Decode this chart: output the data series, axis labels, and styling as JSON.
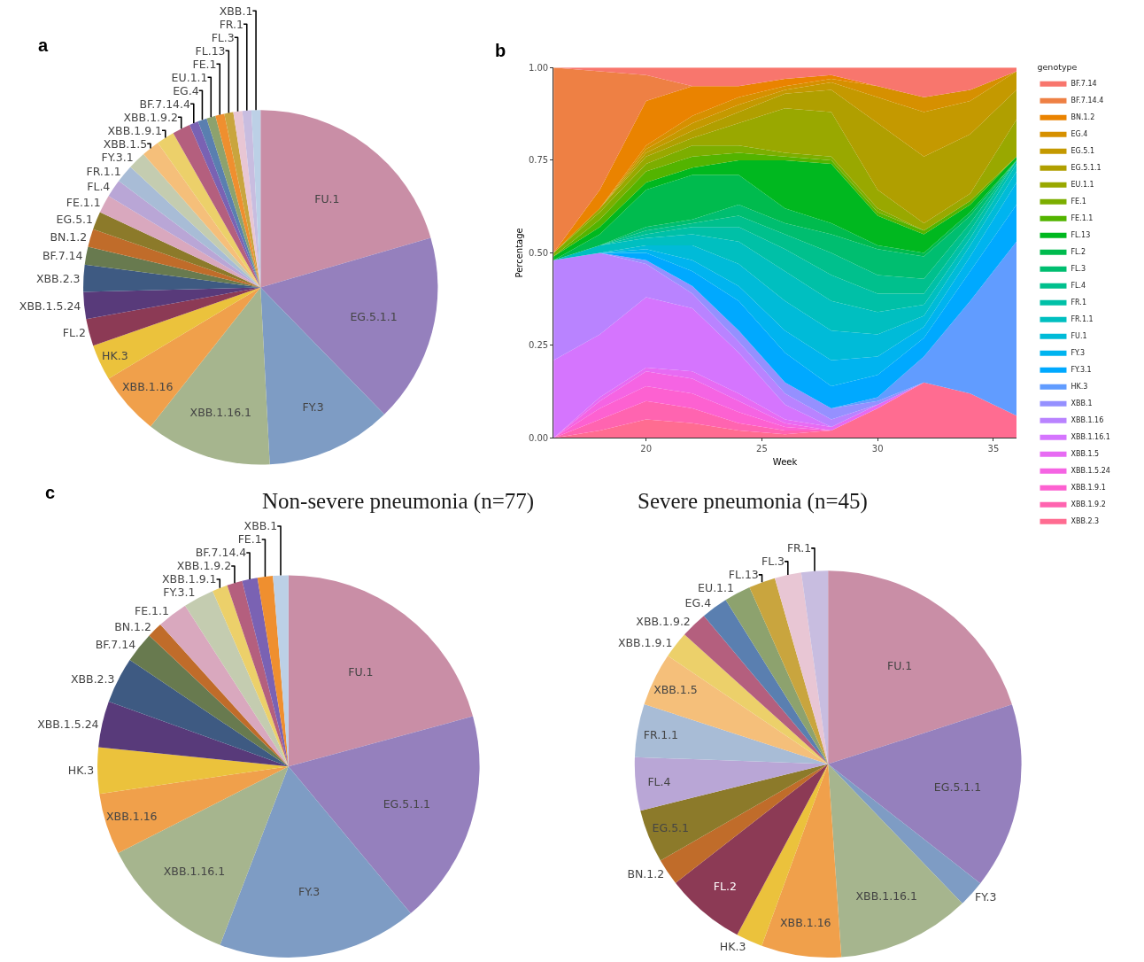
{
  "chart_data": [
    {
      "type": "pie",
      "annotations": [
        "a"
      ],
      "categories": [
        "FU.1",
        "EG.5.1.1",
        "FY.3",
        "XBB.1.16.1",
        "XBB.1.16",
        "HK.3",
        "FL.2",
        "XBB.1.5.24",
        "XBB.2.3",
        "BF.7.14",
        "BN.1.2",
        "EG.5.1",
        "FE.1.1",
        "FL.4",
        "FR.1.1",
        "FY.3.1",
        "XBB.1.5",
        "XBB.1.9.1",
        "XBB.1.9.2",
        "BF.7.14.4",
        "EG.4",
        "EU.1.1",
        "FE.1",
        "FL.13",
        "FL.3",
        "FR.1",
        "XBB.1"
      ],
      "values": [
        20.49,
        17.21,
        11.48,
        11.48,
        5.74,
        3.28,
        2.46,
        2.46,
        2.46,
        1.64,
        1.64,
        1.64,
        1.64,
        1.64,
        1.64,
        1.64,
        1.64,
        1.64,
        1.64,
        0.82,
        0.82,
        0.82,
        0.82,
        0.82,
        0.82,
        0.82,
        0.82
      ],
      "colors": [
        "#c98ea6",
        "#9580bd",
        "#7e9cc4",
        "#a6b58e",
        "#f0a04b",
        "#ebc23c",
        "#8c3a55",
        "#583a7a",
        "#3e5a82",
        "#687a4f",
        "#c06c2a",
        "#8c7a2a",
        "#d9a8be",
        "#b9a6d6",
        "#a8bcd6",
        "#c4ccb0",
        "#f5bf7a",
        "#ecd06a",
        "#b45f7e",
        "#7a62b3",
        "#5a7fb0",
        "#8da26e",
        "#ef8f2f",
        "#c9a53e",
        "#e8c6d4",
        "#c8bde0",
        "#bcd0e6"
      ]
    },
    {
      "type": "area",
      "stacked": true,
      "annotations": [
        "b"
      ],
      "xlabel": "Week",
      "ylabel": "Percentage",
      "legend": "right",
      "legend_title": "genotype",
      "x": [
        16,
        18,
        20,
        22,
        24,
        26,
        28,
        30,
        32,
        34,
        36
      ],
      "xlim": [
        16,
        36
      ],
      "xticks": [
        20,
        25,
        30,
        35
      ],
      "ylim": [
        0,
        1
      ],
      "yticks": [
        {
          "value": 0,
          "label": "0.00"
        },
        {
          "value": 0.25,
          "label": "0.25"
        },
        {
          "value": 0.5,
          "label": "0.50"
        },
        {
          "value": 0.75,
          "label": "0.75"
        },
        {
          "value": 1,
          "label": "1.00"
        }
      ],
      "series": [
        {
          "name": "XBB.2.3",
          "color": "#ff6c91",
          "values": [
            0,
            0.02,
            0.05,
            0.04,
            0.02,
            0.01,
            0.02,
            0.08,
            0.15,
            0.12,
            0.06
          ]
        },
        {
          "name": "XBB.1.9.2",
          "color": "#ff64b0",
          "values": [
            0,
            0.03,
            0.05,
            0.04,
            0.02,
            0.01,
            0,
            null,
            null,
            null,
            null
          ]
        },
        {
          "name": "XBB.1.9.1",
          "color": "#fd61d1",
          "values": [
            0,
            0.03,
            0.04,
            0.04,
            0.03,
            0.01,
            0,
            null,
            null,
            null,
            null
          ]
        },
        {
          "name": "XBB.1.5.24",
          "color": "#f564e3",
          "values": [
            0,
            0.02,
            0.04,
            0.04,
            0.03,
            0.01,
            0,
            null,
            null,
            null,
            null
          ]
        },
        {
          "name": "XBB.1.5",
          "color": "#e76bf3",
          "values": [
            0,
            0.01,
            0.01,
            0.02,
            0.02,
            0.01,
            0.01,
            0.01,
            0,
            null,
            null
          ]
        },
        {
          "name": "XBB.1.16.1",
          "color": "#d575fe",
          "values": [
            0.21,
            0.17,
            0.19,
            0.17,
            0.11,
            0.04,
            0,
            null,
            null,
            null,
            null
          ]
        },
        {
          "name": "XBB.1.16",
          "color": "#b983ff",
          "values": [
            0.27,
            0.22,
            0.09,
            0.04,
            0.03,
            0.03,
            0.02,
            0,
            null,
            null,
            null
          ]
        },
        {
          "name": "XBB.1",
          "color": "#9590ff",
          "values": [
            null,
            0,
            0.01,
            0.02,
            0.03,
            0.03,
            0.03,
            0.01,
            0,
            null,
            null
          ]
        },
        {
          "name": "HK.3",
          "color": "#619cff",
          "values": [
            null,
            null,
            null,
            null,
            null,
            null,
            0,
            0.01,
            0.07,
            0.25,
            0.47
          ]
        },
        {
          "name": "FY.3.1",
          "color": "#00a9ff",
          "values": [
            null,
            0,
            0.02,
            0.04,
            0.08,
            0.08,
            0.06,
            0.06,
            0.05,
            0.08,
            0.1
          ]
        },
        {
          "name": "FY.3",
          "color": "#00b4ef",
          "values": [
            null,
            0,
            0.01,
            0.03,
            0.04,
            0.06,
            0.07,
            0.05,
            0.03,
            0.04,
            0.06
          ]
        },
        {
          "name": "FU.1",
          "color": "#00bbd8",
          "values": [
            null,
            0,
            0.01,
            0.04,
            0.06,
            0.08,
            0.08,
            0.06,
            0.03,
            0.03,
            0.03
          ]
        },
        {
          "name": "FR.1.1",
          "color": "#00bfc0",
          "values": [
            0,
            0.02,
            0.02,
            0.03,
            0.06,
            0.08,
            0.08,
            0.06,
            0.03,
            0.02,
            0.02
          ]
        },
        {
          "name": "FR.1",
          "color": "#00c0a7",
          "values": [
            null,
            0,
            0.01,
            0.02,
            0.04,
            0.06,
            0.07,
            0.05,
            0.03,
            0.02,
            0.01
          ]
        },
        {
          "name": "FL.4",
          "color": "#00c08d",
          "values": [
            null,
            0,
            0.01,
            0.01,
            0.03,
            0.04,
            0.06,
            0.05,
            0.04,
            0.02,
            0
          ]
        },
        {
          "name": "FL.3",
          "color": "#00be70",
          "values": [
            null,
            0,
            0.01,
            0.01,
            0.03,
            0.03,
            0.05,
            0.07,
            0.06,
            0.02,
            0
          ]
        },
        {
          "name": "FL.2",
          "color": "#00bb4e",
          "values": [
            0,
            0.03,
            0.1,
            0.12,
            0.08,
            0.04,
            0.03,
            0.01,
            0.01,
            0.01,
            0
          ]
        },
        {
          "name": "FL.13",
          "color": "#00b81f",
          "values": [
            0.01,
            0.02,
            0.02,
            0.02,
            0.04,
            0.13,
            0.16,
            0.08,
            0.05,
            0.02,
            0.01
          ]
        },
        {
          "name": "FE.1.1",
          "color": "#53b400",
          "values": [
            0,
            0.02,
            0.03,
            0.03,
            0.02,
            0.01,
            0.01,
            0.01,
            0.01,
            0.01,
            0
          ]
        },
        {
          "name": "FE.1",
          "color": "#7cae00",
          "values": [
            0.01,
            0.02,
            0.02,
            0.03,
            0.02,
            0.01,
            0.01,
            0.01,
            0,
            null,
            null
          ]
        },
        {
          "name": "EU.1.1",
          "color": "#99a800",
          "values": [
            0,
            0.01,
            0.02,
            0.02,
            0.06,
            0.12,
            0.12,
            0.05,
            0.02,
            0.02,
            0.1
          ]
        },
        {
          "name": "EG.5.1.1",
          "color": "#b09f00",
          "values": [
            null,
            0,
            0.01,
            0.02,
            0.03,
            0.04,
            0.06,
            0.18,
            0.18,
            0.16,
            0.08
          ]
        },
        {
          "name": "EG.5.1",
          "color": "#c49900",
          "values": [
            null,
            0,
            0.01,
            0.02,
            0.02,
            0.01,
            0.02,
            0.07,
            0.12,
            0.09,
            0.05
          ]
        },
        {
          "name": "EG.4",
          "color": "#d69000",
          "values": [
            0,
            0,
            0.01,
            0.02,
            0.02,
            0.01,
            0.01,
            0.03,
            0.04,
            0.03,
            0
          ]
        },
        {
          "name": "BN.1.2",
          "color": "#ea8300",
          "values": [
            0,
            0.05,
            0.12,
            0.08,
            0.03,
            0.02,
            0.01,
            0,
            null,
            null,
            null
          ]
        },
        {
          "name": "BF.7.14.4",
          "color": "#ee8044",
          "values": [
            0.5,
            0.32,
            0.07,
            0,
            null,
            null,
            null,
            null,
            null,
            null,
            null
          ]
        },
        {
          "name": "BF.7.14",
          "color": "#f8766d",
          "values": [
            0,
            0.01,
            0.02,
            0.05,
            0.05,
            0.03,
            0.02,
            0.05,
            0.08,
            0.06,
            0.01
          ]
        }
      ]
    },
    {
      "type": "pie",
      "title": "Non-severe pneumonia (n=77)",
      "annotations": [
        "c"
      ],
      "categories": [
        "FU.1",
        "EG.5.1.1",
        "FY.3",
        "XBB.1.16.1",
        "XBB.1.16",
        "HK.3",
        "XBB.1.5.24",
        "XBB.2.3",
        "BF.7.14",
        "BN.1.2",
        "FE.1.1",
        "FY.3.1",
        "XBB.1.9.1",
        "XBB.1.9.2",
        "BF.7.14.4",
        "FE.1",
        "XBB.1"
      ],
      "values": [
        20.78,
        18.18,
        16.88,
        11.69,
        5.19,
        3.9,
        3.9,
        3.9,
        2.6,
        1.3,
        2.6,
        2.6,
        1.3,
        1.3,
        1.3,
        1.3,
        1.3
      ],
      "colors": [
        "#c98ea6",
        "#9580bd",
        "#7e9cc4",
        "#a6b58e",
        "#f0a04b",
        "#ebc23c",
        "#583a7a",
        "#3e5a82",
        "#687a4f",
        "#c06c2a",
        "#d9a8be",
        "#c4ccb0",
        "#ecd06a",
        "#b45f7e",
        "#7a62b3",
        "#ef8f2f",
        "#bcd0e6"
      ]
    },
    {
      "type": "pie",
      "title": "Severe pneumonia (n=45)",
      "categories": [
        "FU.1",
        "EG.5.1.1",
        "FY.3",
        "XBB.1.16.1",
        "XBB.1.16",
        "HK.3",
        "FL.2",
        "BN.1.2",
        "EG.5.1",
        "FL.4",
        "FR.1.1",
        "XBB.1.5",
        "XBB.1.9.1",
        "XBB.1.9.2",
        "EG.4",
        "EU.1.1",
        "FL.13",
        "FL.3",
        "FR.1"
      ],
      "values": [
        20.0,
        15.56,
        2.22,
        11.11,
        6.67,
        2.22,
        6.67,
        2.22,
        4.44,
        4.44,
        4.44,
        4.44,
        2.22,
        2.22,
        2.22,
        2.22,
        2.22,
        2.22,
        2.22
      ],
      "colors": [
        "#c98ea6",
        "#9580bd",
        "#7e9cc4",
        "#a6b58e",
        "#f0a04b",
        "#ebc23c",
        "#8c3a55",
        "#c06c2a",
        "#8c7a2a",
        "#b9a6d6",
        "#a8bcd6",
        "#f5bf7a",
        "#ecd06a",
        "#b45f7e",
        "#5a7fb0",
        "#8da26e",
        "#c9a53e",
        "#e8c6d4",
        "#c8bde0"
      ]
    }
  ]
}
